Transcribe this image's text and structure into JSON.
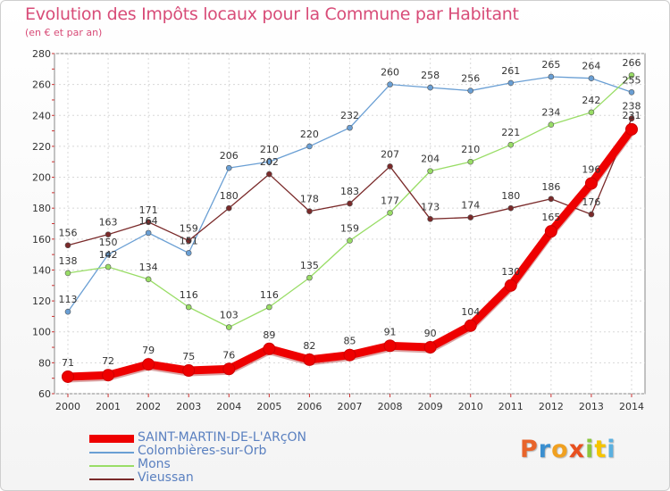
{
  "header": {
    "title": "Evolution des Impôts locaux pour la Commune par Habitant",
    "subtitle": "(en € et par an)"
  },
  "logo": {
    "letters": [
      "P",
      "r",
      "o",
      "x",
      "i",
      "t",
      "i"
    ],
    "colors": [
      "#e8642a",
      "#3a8fd0",
      "#f0a020",
      "#e85020",
      "#8cc63e",
      "#f5c400",
      "#5ab0e0"
    ]
  },
  "chart_data": {
    "type": "line",
    "title": "Evolution des Impôts locaux pour la Commune par Habitant",
    "subtitle": "(en € et par an)",
    "x": [
      "2000",
      "2001",
      "2002",
      "2003",
      "2004",
      "2005",
      "2006",
      "2007",
      "2008",
      "2009",
      "2010",
      "2011",
      "2012",
      "2013",
      "2014"
    ],
    "yticks": [
      "60",
      "80",
      "100",
      "120",
      "140",
      "160",
      "180",
      "200",
      "220",
      "240",
      "260",
      "280"
    ],
    "ylim": [
      60,
      280
    ],
    "grid": true,
    "legend_position": "bottom-left",
    "series": [
      {
        "name": "SAINT-MARTIN-DE-L'ARçON",
        "color": "#ee0000",
        "values": [
          71,
          72,
          79,
          75,
          76,
          89,
          82,
          85,
          91,
          90,
          104,
          130,
          165,
          196,
          231
        ],
        "labels": [
          "71",
          "72",
          "79",
          "75",
          "76",
          "89",
          "82",
          "85",
          "91",
          "90",
          "104",
          "130",
          "165",
          "196",
          "231"
        ]
      },
      {
        "name": "Colombières-sur-Orb",
        "color": "#6a9fd4",
        "values": [
          113,
          150,
          164,
          151,
          206,
          210,
          220,
          232,
          260,
          258,
          256,
          261,
          265,
          264,
          255
        ],
        "labels": [
          "113",
          "150",
          "164",
          "151",
          "206",
          "210",
          "220",
          "232",
          "260",
          "258",
          "256",
          "261",
          "265",
          "264",
          "255"
        ]
      },
      {
        "name": "Mons",
        "color": "#99dd66",
        "values": [
          138,
          142,
          134,
          116,
          103,
          116,
          135,
          159,
          177,
          204,
          210,
          221,
          234,
          242,
          266
        ],
        "labels": [
          "138",
          "142",
          "134",
          "116",
          "103",
          "116",
          "135",
          "159",
          "177",
          "204",
          "210",
          "221",
          "234",
          "242",
          "266"
        ]
      },
      {
        "name": "Vieussan",
        "color": "#7a2a2a",
        "values": [
          156,
          163,
          171,
          159,
          180,
          202,
          178,
          183,
          207,
          173,
          174,
          180,
          186,
          176,
          238
        ],
        "labels": [
          "156",
          "163",
          "171",
          "159",
          "180",
          "202",
          "178",
          "183",
          "207",
          "173",
          "174",
          "180",
          "186",
          "176",
          "238"
        ]
      }
    ]
  }
}
